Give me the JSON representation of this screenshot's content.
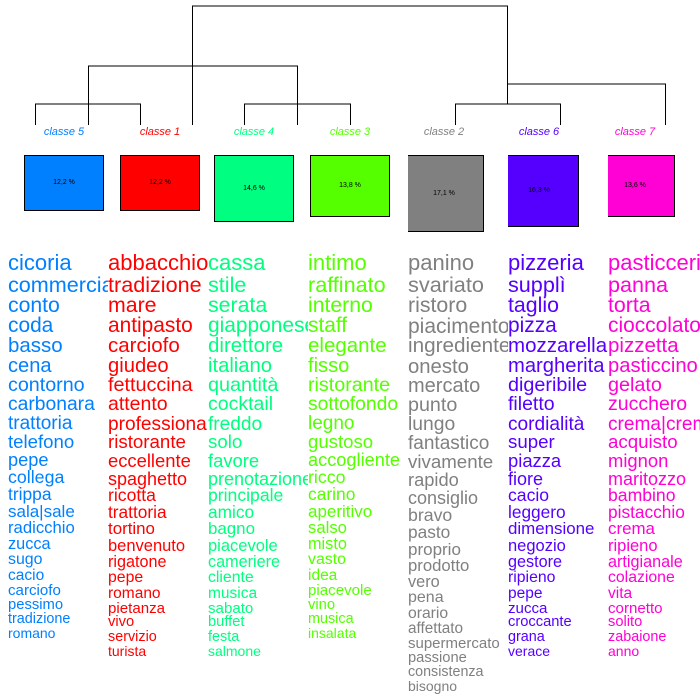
{
  "classes": [
    {
      "label": "classe  5",
      "color": "#0080ff",
      "percent": "12,2 %",
      "relsize": 0.55,
      "words": [
        "cicoria",
        "commerciale",
        "conto",
        "coda",
        "basso",
        "cena",
        "contorno",
        "carbonara",
        "trattoria",
        "telefono",
        "pepe",
        "collega",
        "trippa",
        "sala|sale",
        "radicchio",
        "zucca",
        "sugo",
        "cacio",
        "carciofo",
        "pessimo",
        "tradizione",
        "romano"
      ]
    },
    {
      "label": "classe  1",
      "color": "#ff0000",
      "percent": "12,2 %",
      "relsize": 0.55,
      "words": [
        "abbacchio",
        "tradizione",
        "mare",
        "antipasto",
        "carciofo",
        "giudeo",
        "fettuccina",
        "attento",
        "professionale",
        "ristorante",
        "eccellente",
        "spaghetto",
        "ricotta",
        "trattoria",
        "tortino",
        "benvenuto",
        "rigatone",
        "pepe",
        "romano",
        "pietanza",
        "vivo",
        "servizio",
        "turista"
      ]
    },
    {
      "label": "classe  4",
      "color": "#00ff80",
      "percent": "14,6 %",
      "relsize": 0.67,
      "words": [
        "cassa",
        "stile",
        "serata",
        "giapponese",
        "direttore",
        "italiano",
        "quantità",
        "cocktail",
        "freddo",
        "solo",
        "favore",
        "prenotazione",
        "principale",
        "amico",
        "bagno",
        "piacevole",
        "cameriere",
        "cliente",
        "musica",
        "sabato",
        "buffet",
        "festa",
        "salmone"
      ]
    },
    {
      "label": "classe  3",
      "color": "#55ff00",
      "percent": "13,8 %",
      "relsize": 0.64,
      "words": [
        "intimo",
        "raffinato",
        "interno",
        "staff",
        "elegante",
        "fisso",
        "ristorante",
        "sottofondo",
        "legno",
        "gustoso",
        "accogliente",
        "ricco",
        "carino",
        "aperitivo",
        "salso",
        "misto",
        "vasto",
        "idea",
        "piacevole",
        "vino",
        "musica",
        "insalata"
      ]
    },
    {
      "label": "classe  2",
      "color": "#808080",
      "percent": "17,1 %",
      "relsize": 0.78,
      "words": [
        "panino",
        "svariato",
        "ristoro",
        "piacimento",
        "ingrediente",
        "onesto",
        "mercato",
        "punto",
        "lungo",
        "fantastico",
        "vivamente",
        "rapido",
        "consiglio",
        "bravo",
        "pasto",
        "proprio",
        "prodotto",
        "vero",
        "pena",
        "orario",
        "affettato",
        "supermercato",
        "passione",
        "consistenza",
        "bisogno"
      ]
    },
    {
      "label": "classe  6",
      "color": "#5500ff",
      "percent": "16,3 %",
      "relsize": 0.74,
      "words": [
        "pizzeria",
        "supplì",
        "taglio",
        "pizza",
        "mozzarella",
        "margherita",
        "digeribile",
        "filetto",
        "cordialità",
        "super",
        "piazza",
        "fiore",
        "cacio",
        "leggero",
        "dimensione",
        "negozio",
        "gestore",
        "ripieno",
        "pepe",
        "zucca",
        "croccante",
        "grana",
        "verace"
      ]
    },
    {
      "label": "classe  7",
      "color": "#ff00d5",
      "percent": "13,6 %",
      "relsize": 0.62,
      "words": [
        "pasticceria",
        "panna",
        "torta",
        "cioccolato",
        "pizzetta",
        "pasticcino",
        "gelato",
        "zucchero",
        "crema|crema",
        "acquisto",
        "mignon",
        "maritozzo",
        "bambino",
        "pistacchio",
        "crema",
        "ripieno",
        "artigianale",
        "colazione",
        "vita",
        "cornetto",
        "solito",
        "zabaione",
        "anno"
      ]
    }
  ]
}
